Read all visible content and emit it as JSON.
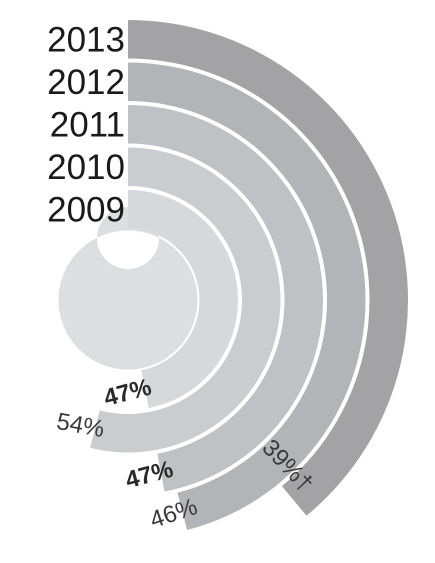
{
  "chart_data": {
    "type": "radial-bar",
    "categories": [
      "2013",
      "2012",
      "2011",
      "2010",
      "2009"
    ],
    "values": [
      39,
      46,
      47,
      54,
      47
    ],
    "value_labels": [
      "39%†",
      "46%",
      "47%",
      "54%",
      "47%"
    ],
    "value_max": 100,
    "colors": [
      "#a3a3a6",
      "#b3b4b7",
      "#c0c1c4",
      "#cbcccf",
      "#d7d8db"
    ],
    "bold_labels": [
      "2011",
      "2009"
    ]
  }
}
